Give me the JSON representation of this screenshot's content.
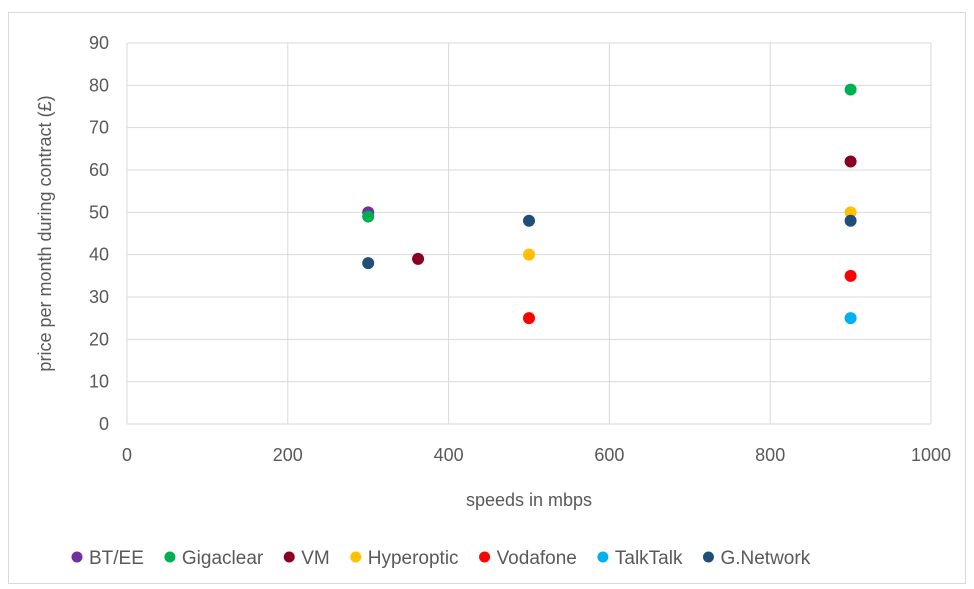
{
  "chart_data": {
    "type": "scatter",
    "xlabel": "speeds in mbps",
    "ylabel": "price per month during contract (£)",
    "xlim": [
      0,
      1000
    ],
    "ylim": [
      0,
      90
    ],
    "xticks": [
      0,
      200,
      400,
      600,
      800,
      1000
    ],
    "yticks": [
      0,
      10,
      20,
      30,
      40,
      50,
      60,
      70,
      80,
      90
    ],
    "grid": true,
    "legend_position": "bottom",
    "series": [
      {
        "name": "BT/EE",
        "color": "#7030a0",
        "points": [
          {
            "x": 300,
            "y": 50
          }
        ]
      },
      {
        "name": "Gigaclear",
        "color": "#00b050",
        "points": [
          {
            "x": 300,
            "y": 49
          },
          {
            "x": 900,
            "y": 79
          }
        ]
      },
      {
        "name": "VM",
        "color": "#8b0020",
        "points": [
          {
            "x": 362,
            "y": 39
          },
          {
            "x": 900,
            "y": 62
          }
        ]
      },
      {
        "name": "Hyperoptic",
        "color": "#ffc000",
        "points": [
          {
            "x": 500,
            "y": 40
          },
          {
            "x": 900,
            "y": 50
          }
        ]
      },
      {
        "name": "Vodafone",
        "color": "#ff0000",
        "points": [
          {
            "x": 500,
            "y": 25
          },
          {
            "x": 900,
            "y": 35
          }
        ]
      },
      {
        "name": "TalkTalk",
        "color": "#00b0f0",
        "points": [
          {
            "x": 900,
            "y": 25
          }
        ]
      },
      {
        "name": "G.Network",
        "color": "#1f4e79",
        "points": [
          {
            "x": 300,
            "y": 38
          },
          {
            "x": 500,
            "y": 48
          },
          {
            "x": 900,
            "y": 48
          }
        ]
      }
    ]
  }
}
